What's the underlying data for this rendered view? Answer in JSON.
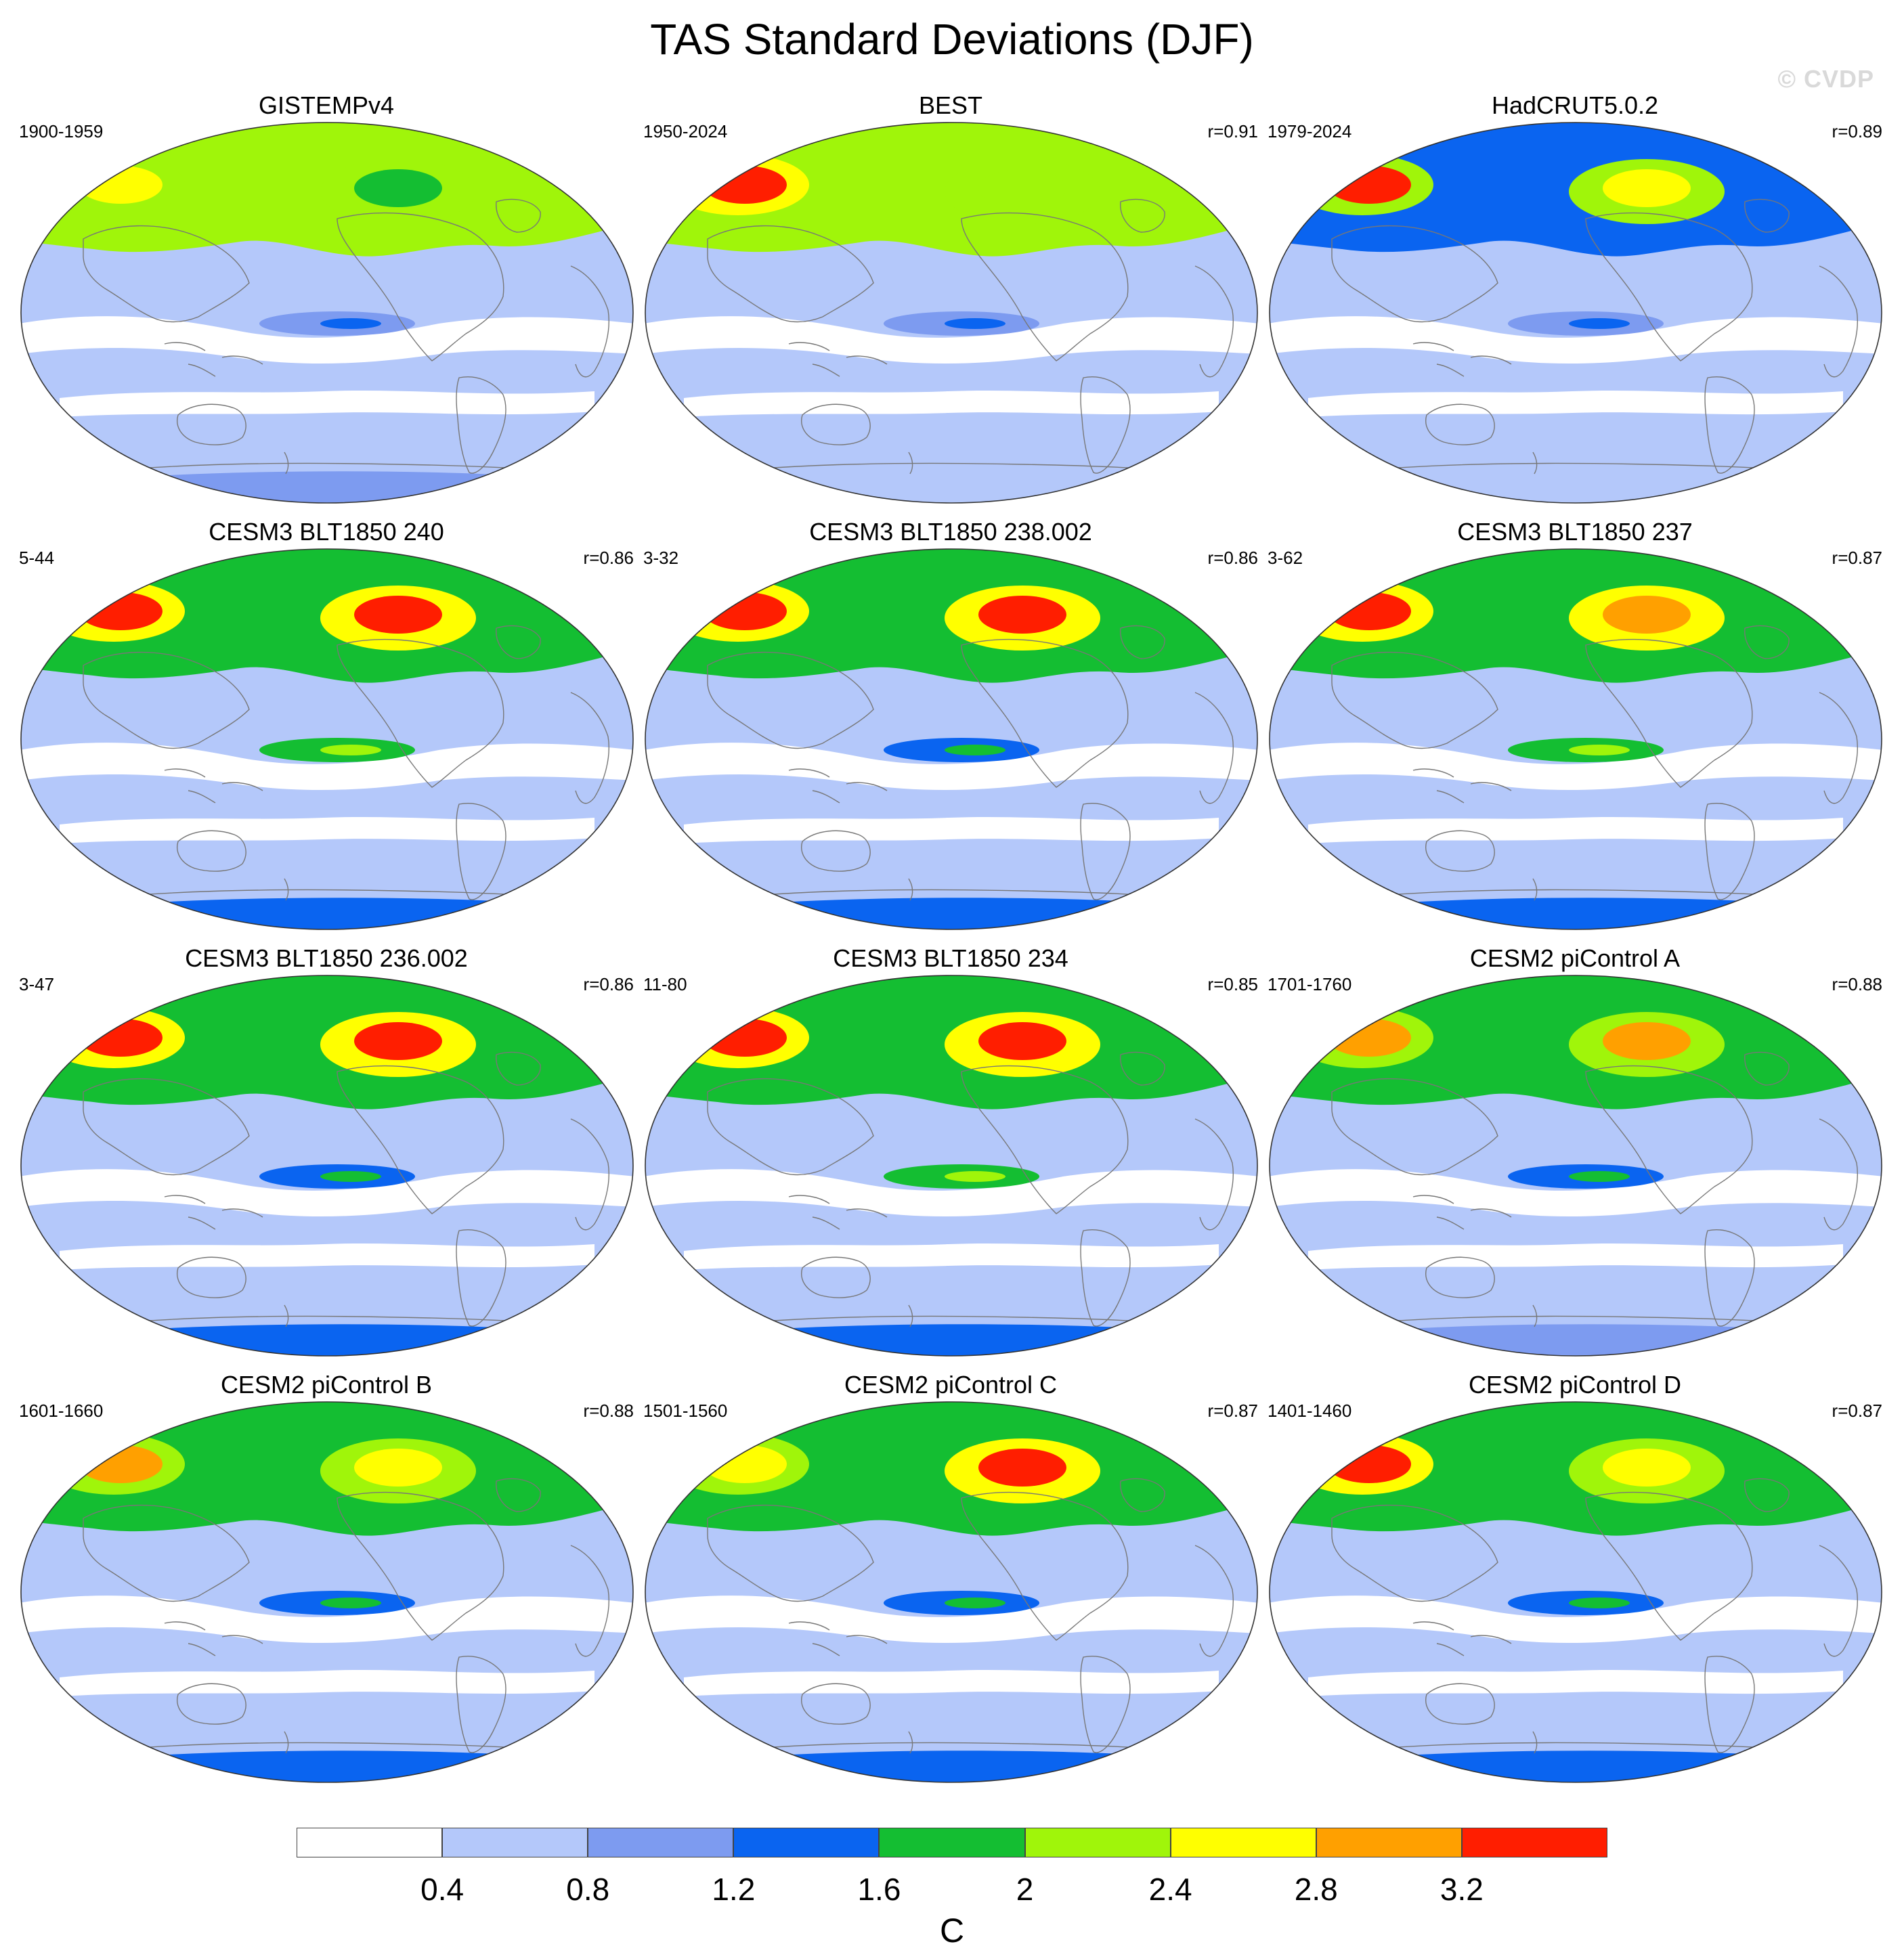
{
  "title": "TAS Standard Deviations (DJF)",
  "watermark": "© CVDP",
  "colors": {
    "levels": [
      "#ffffff",
      "#b4c8fa",
      "#7d9bf0",
      "#0a64f0",
      "#14be32",
      "#a0f50a",
      "#ffff00",
      "#ffa000",
      "#ff1e00"
    ],
    "coastline": "#777777"
  },
  "colorbar": {
    "labels": [
      "0.4",
      "0.8",
      "1.2",
      "1.6",
      "2",
      "2.4",
      "2.8",
      "3.2"
    ],
    "units": "C"
  },
  "panels": [
    {
      "title": "GISTEMPv4",
      "period": "1900-1959",
      "r": "",
      "arctic": 2.3,
      "eastern_peak": 2.5,
      "western_peak": 1.9,
      "enso": 1.0,
      "antarctic": 0.9
    },
    {
      "title": "BEST",
      "period": "1950-2024",
      "r": "r=0.91",
      "arctic": 2.0,
      "eastern_peak": 3.4,
      "western_peak": 2.3,
      "enso": 0.9,
      "antarctic": 0.6
    },
    {
      "title": "HadCRUT5.0.2",
      "period": "1979-2024",
      "r": "r=0.89",
      "arctic": 1.5,
      "eastern_peak": 3.3,
      "western_peak": 2.5,
      "enso": 0.9,
      "antarctic": 0.6
    },
    {
      "title": "CESM3 BLT1850 240",
      "period": "5-44",
      "r": "r=0.86",
      "arctic": 1.8,
      "eastern_peak": 3.4,
      "western_peak": 3.4,
      "enso": 1.8,
      "antarctic": 1.4
    },
    {
      "title": "CESM3 BLT1850 238.002",
      "period": "3-32",
      "r": "r=0.86",
      "arctic": 1.8,
      "eastern_peak": 3.4,
      "western_peak": 3.3,
      "enso": 1.3,
      "antarctic": 1.4
    },
    {
      "title": "CESM3 BLT1850 237",
      "period": "3-62",
      "r": "r=0.87",
      "arctic": 1.9,
      "eastern_peak": 3.4,
      "western_peak": 3.1,
      "enso": 1.8,
      "antarctic": 1.4
    },
    {
      "title": "CESM3 BLT1850 236.002",
      "period": "3-47",
      "r": "r=0.86",
      "arctic": 1.8,
      "eastern_peak": 3.4,
      "western_peak": 3.4,
      "enso": 1.3,
      "antarctic": 1.4
    },
    {
      "title": "CESM3 BLT1850 234",
      "period": "11-80",
      "r": "r=0.85",
      "arctic": 1.8,
      "eastern_peak": 3.4,
      "western_peak": 3.4,
      "enso": 1.8,
      "antarctic": 1.4
    },
    {
      "title": "CESM2 piControl A",
      "period": "1701-1760",
      "r": "r=0.88",
      "arctic": 1.8,
      "eastern_peak": 3.0,
      "western_peak": 2.9,
      "enso": 1.3,
      "antarctic": 1.0
    },
    {
      "title": "CESM2 piControl B",
      "period": "1601-1660",
      "r": "r=0.88",
      "arctic": 1.8,
      "eastern_peak": 2.9,
      "western_peak": 2.7,
      "enso": 1.3,
      "antarctic": 1.3
    },
    {
      "title": "CESM2 piControl C",
      "period": "1501-1560",
      "r": "r=0.87",
      "arctic": 1.8,
      "eastern_peak": 2.7,
      "western_peak": 3.4,
      "enso": 1.3,
      "antarctic": 1.3
    },
    {
      "title": "CESM2 piControl D",
      "period": "1401-1460",
      "r": "r=0.87",
      "arctic": 1.8,
      "eastern_peak": 3.3,
      "western_peak": 2.8,
      "enso": 1.3,
      "antarctic": 1.3
    }
  ]
}
